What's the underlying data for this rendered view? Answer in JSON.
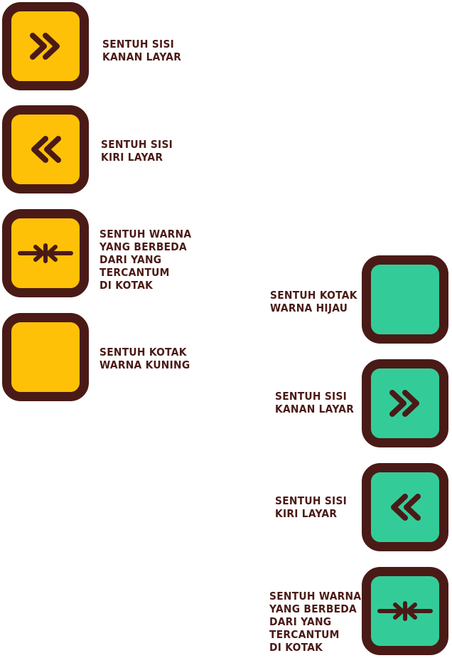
{
  "colors": {
    "yellow": "#ffc107",
    "green": "#33cc99",
    "outline": "#4a1a16",
    "text": "#4a1a16"
  },
  "yellow_set": [
    {
      "icon": "double-chevron-right-icon",
      "label": [
        "SENTUH SISI",
        "KANAN LAYAR"
      ]
    },
    {
      "icon": "double-chevron-left-icon",
      "label": [
        "SENTUH SISI",
        "KIRI LAYAR"
      ]
    },
    {
      "icon": "arrows-inward-icon",
      "label": [
        "SENTUH WARNA",
        "YANG BERBEDA",
        "DARI YANG",
        "TERCANTUM",
        "DI KOTAK"
      ]
    },
    {
      "icon": "none",
      "label": [
        "SENTUH KOTAK",
        "WARNA KUNING"
      ]
    }
  ],
  "green_set": [
    {
      "icon": "none",
      "label": [
        "SENTUH KOTAK",
        "WARNA HIJAU"
      ]
    },
    {
      "icon": "double-chevron-right-icon",
      "label": [
        "SENTUH SISI",
        "KANAN LAYAR"
      ]
    },
    {
      "icon": "double-chevron-left-icon",
      "label": [
        "SENTUH SISI",
        "KIRI LAYAR"
      ]
    },
    {
      "icon": "arrows-inward-icon",
      "label": [
        "SENTUH WARNA",
        "YANG BERBEDA",
        "DARI YANG",
        "TERCANTUM",
        "DI KOTAK"
      ]
    }
  ]
}
